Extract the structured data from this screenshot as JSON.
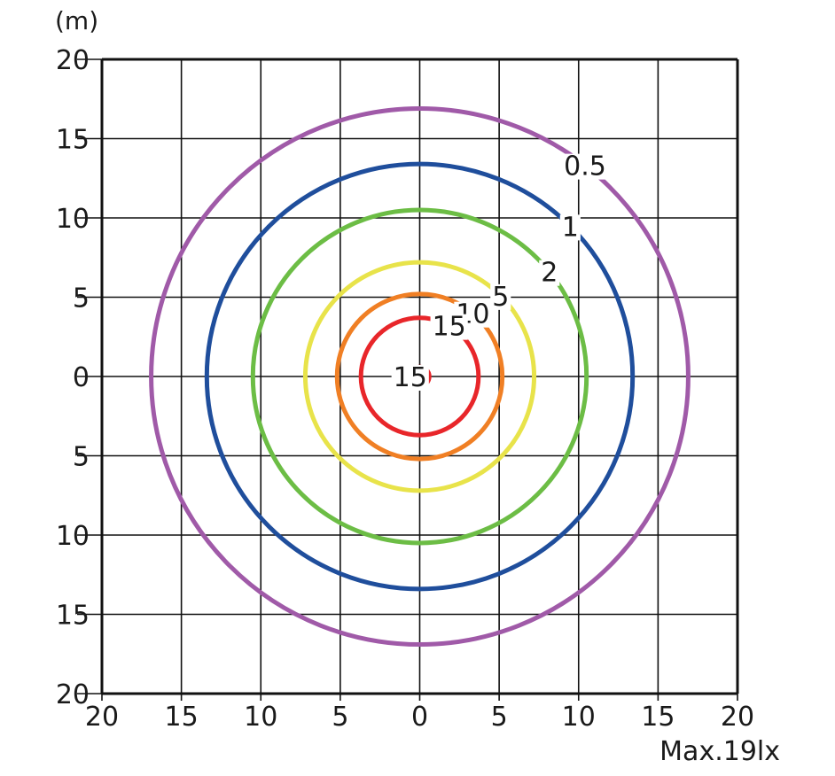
{
  "chart_data": {
    "type": "contour",
    "unit_label": "(m)",
    "note": "Max.19lx",
    "xlim": [
      -20,
      20
    ],
    "ylim": [
      -20,
      20
    ],
    "grid_step": 5,
    "grid": true,
    "x_ticks": [
      "20",
      "15",
      "10",
      "5",
      "0",
      "5",
      "10",
      "15",
      "20"
    ],
    "y_ticks": [
      "20",
      "15",
      "10",
      "5",
      "0",
      "5",
      "10",
      "15",
      "20"
    ],
    "contours": [
      {
        "level": "0.5",
        "radius_m": 16.9,
        "color": "#a05aa8",
        "label_angle_deg": 52
      },
      {
        "level": "1",
        "radius_m": 13.4,
        "color": "#1f4e9c",
        "label_angle_deg": 45
      },
      {
        "level": "2",
        "radius_m": 10.5,
        "color": "#6cbd45",
        "label_angle_deg": 39
      },
      {
        "level": "5",
        "radius_m": 7.2,
        "color": "#e8e34a",
        "label_angle_deg": 45
      },
      {
        "level": "10",
        "radius_m": 5.2,
        "color": "#f07f24",
        "label_angle_deg": 50
      },
      {
        "level": "15",
        "radius_m": 3.7,
        "color": "#e8262a",
        "label_angle_deg": 60
      },
      {
        "level": "15",
        "radius_m": 0.6,
        "color": "#e8262a",
        "label_angle_deg": 180
      }
    ]
  }
}
